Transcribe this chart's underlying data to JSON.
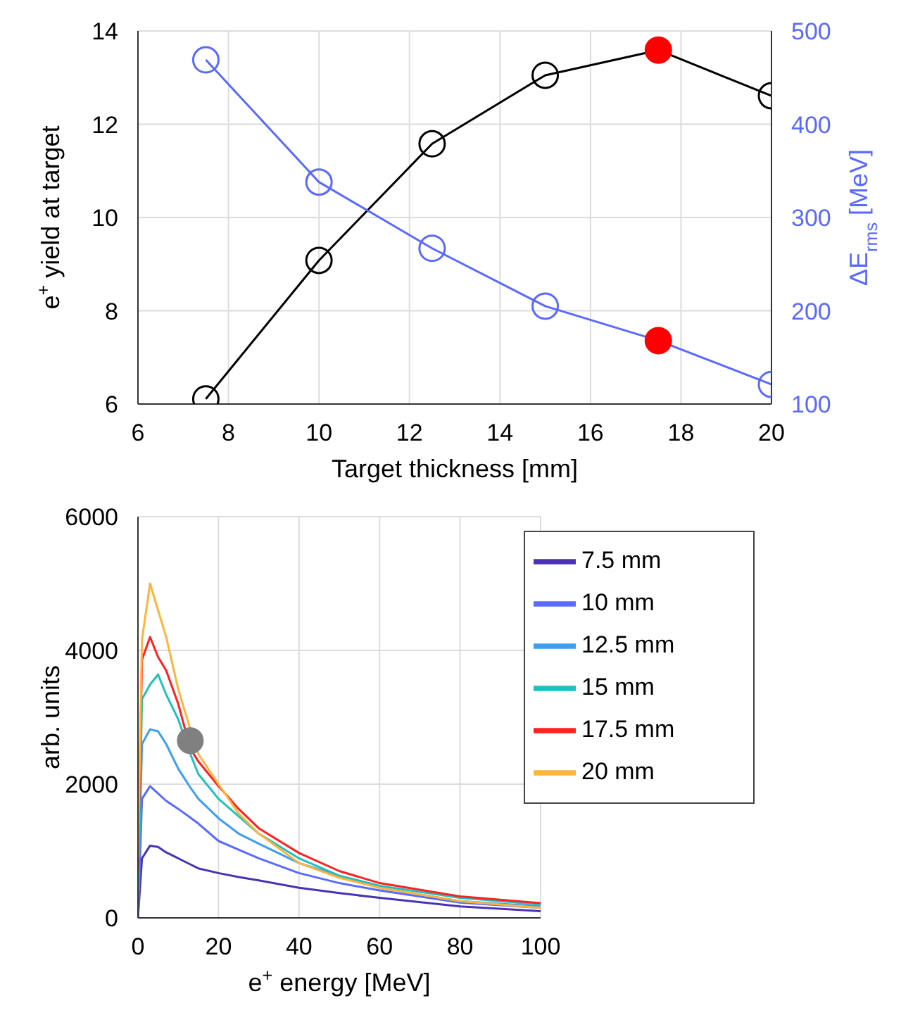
{
  "chart_data": [
    {
      "type": "line",
      "xlabel": "Target thickness [mm]",
      "ylabel": "e$^{+}$ yield at target",
      "y2label": "ΔE$_{rms}$ [MeV]",
      "x": [
        7.5,
        10,
        12.5,
        15,
        17.5,
        20
      ],
      "xlim": [
        6,
        20
      ],
      "xticks": [
        6,
        8,
        10,
        12,
        14,
        16,
        18,
        20
      ],
      "ylim": [
        6,
        14
      ],
      "yticks": [
        6,
        8,
        10,
        12,
        14
      ],
      "y2lim": [
        100,
        500
      ],
      "y2ticks": [
        100,
        200,
        300,
        400,
        500
      ],
      "grid": true,
      "marker": "circle",
      "series": [
        {
          "color": "#000000",
          "colors": [
            "#000000",
            "#000000",
            "#000000",
            "#000000",
            "#ff0000",
            "#000000"
          ],
          "values": [
            6.11,
            9.08,
            11.58,
            13.05,
            13.59,
            12.61
          ]
        },
        {
          "color": "#5a6aff",
          "axis": "y2",
          "colors": [
            "#5a6aff",
            "#5a6aff",
            "#5a6aff",
            "#5a6aff",
            "#ff0000",
            "#5a6aff"
          ],
          "values": [
            469,
            338,
            267,
            205,
            168,
            121
          ]
        }
      ]
    },
    {
      "type": "line",
      "xlabel": "e$^{+}$ energy [MeV]",
      "ylabel": "arb. units",
      "x": [
        0,
        1,
        3,
        5,
        7,
        10,
        13,
        15,
        20,
        25,
        30,
        40,
        50,
        60,
        80,
        100
      ],
      "xlim": [
        0,
        100
      ],
      "xticks": [
        0,
        20,
        40,
        60,
        80,
        100
      ],
      "ylim": [
        0,
        6000
      ],
      "yticks": [
        0,
        2000,
        4000,
        6000
      ],
      "grid": true,
      "legend": "top right",
      "marker": "none",
      "series": [
        {
          "name": "7.5 mm",
          "color": "#4b32b4",
          "values": [
            0,
            890,
            1080,
            1060,
            980,
            890,
            800,
            740,
            670,
            610,
            560,
            450,
            370,
            300,
            170,
            100
          ]
        },
        {
          "name": "10 mm",
          "color": "#5a6aff",
          "values": [
            0,
            1780,
            1970,
            1860,
            1750,
            1630,
            1500,
            1410,
            1150,
            1020,
            890,
            670,
            520,
            410,
            230,
            150
          ]
        },
        {
          "name": "12.5 mm",
          "color": "#3c9ff0",
          "values": [
            300,
            2600,
            2820,
            2790,
            2600,
            2230,
            1950,
            1780,
            1490,
            1260,
            1110,
            820,
            630,
            450,
            250,
            170
          ]
        },
        {
          "name": "15 mm",
          "color": "#20c0c0",
          "values": [
            400,
            3270,
            3490,
            3640,
            3340,
            2970,
            2450,
            2150,
            1780,
            1520,
            1260,
            890,
            630,
            480,
            300,
            200
          ]
        },
        {
          "name": "17.5 mm",
          "color": "#ff2020",
          "values": [
            700,
            3860,
            4200,
            3900,
            3700,
            3200,
            2530,
            2340,
            1970,
            1630,
            1340,
            970,
            700,
            520,
            320,
            220
          ]
        },
        {
          "name": "20 mm",
          "color": "#ffb43c",
          "values": [
            900,
            4160,
            5000,
            4600,
            4200,
            3420,
            2820,
            2450,
            2000,
            1560,
            1260,
            820,
            600,
            450,
            250,
            150
          ]
        },
        {
          "type": "scatter",
          "color": "#808080",
          "marker": "circle",
          "x": [
            13
          ],
          "values": [
            2650
          ]
        }
      ]
    }
  ]
}
